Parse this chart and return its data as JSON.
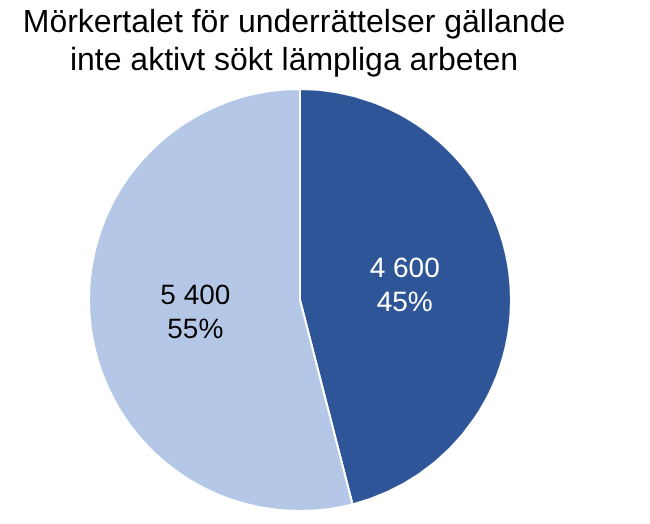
{
  "chart_data": {
    "type": "pie",
    "title": "Mörkertalet för underrättelser gällande inte aktivt sökt lämpliga arbeten",
    "categories": [
      null,
      null
    ],
    "values": [
      4600,
      5400
    ],
    "colors": [
      "#2e5597",
      "#b4c7e7"
    ],
    "value_labels": [
      "4 600\n45%",
      "5 400\n55%"
    ],
    "legend": false
  }
}
